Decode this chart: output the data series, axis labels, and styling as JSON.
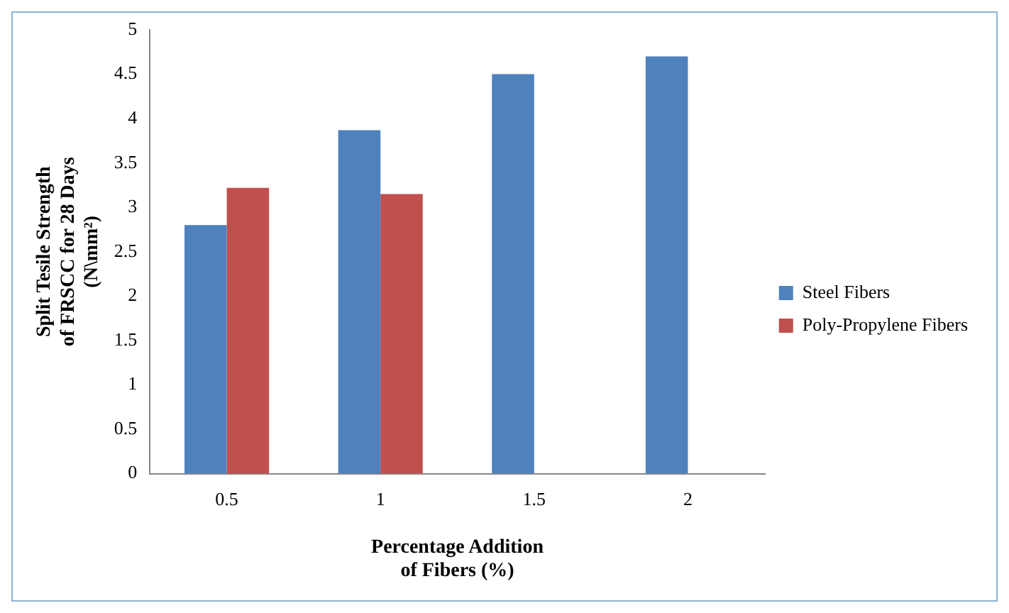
{
  "chart_data": {
    "type": "bar",
    "categories": [
      "0.5",
      "1",
      "1.5",
      "2"
    ],
    "series": [
      {
        "name": "Steel Fibers",
        "color": "#4f81bd",
        "values": [
          2.8,
          3.87,
          4.5,
          4.7
        ]
      },
      {
        "name": "Poly-Propylene Fibers",
        "color": "#c0504d",
        "values": [
          3.22,
          3.15,
          null,
          null
        ]
      }
    ],
    "ylabel": "Split Tesile Strength\nof FRSCC for 28 Days\n(N\\mm²)",
    "xlabel": "Percentage Addition\nof Fibers (%)",
    "ylim": [
      0,
      5
    ],
    "yticks": [
      0,
      0.5,
      1,
      1.5,
      2,
      2.5,
      3,
      3.5,
      4,
      4.5,
      5
    ],
    "grid": false,
    "legend": "right"
  }
}
